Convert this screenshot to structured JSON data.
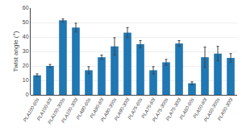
{
  "chart_data": {
    "type": "bar",
    "categories": [
      "PLA100-60s",
      "PLA100-60l",
      "PLA100-300s",
      "PLA100-300l",
      "PLA90-60s",
      "PLA90-60l",
      "PLA90-300s",
      "PLA90-300l",
      "PLA75-60s",
      "PLA75-60l",
      "PLA75-300s",
      "PLA75-300l",
      "PLA50-60s",
      "PLA50-60l",
      "PLA50-300s",
      "PLA50-300l"
    ],
    "values": [
      13.5,
      20.0,
      51.5,
      46.5,
      17.0,
      26.0,
      33.5,
      43.0,
      35.0,
      17.0,
      22.5,
      35.5,
      8.0,
      26.0,
      28.5,
      25.5
    ],
    "errors": [
      1.0,
      1.0,
      1.0,
      3.0,
      2.5,
      1.5,
      6.0,
      3.5,
      2.5,
      2.5,
      2.0,
      2.0,
      1.0,
      7.0,
      5.0,
      3.0
    ],
    "ylabel": "Twist angle (°)",
    "ylim": [
      0,
      60
    ],
    "yticks": [
      0,
      10,
      20,
      30,
      40,
      50,
      60
    ],
    "grid": true
  }
}
